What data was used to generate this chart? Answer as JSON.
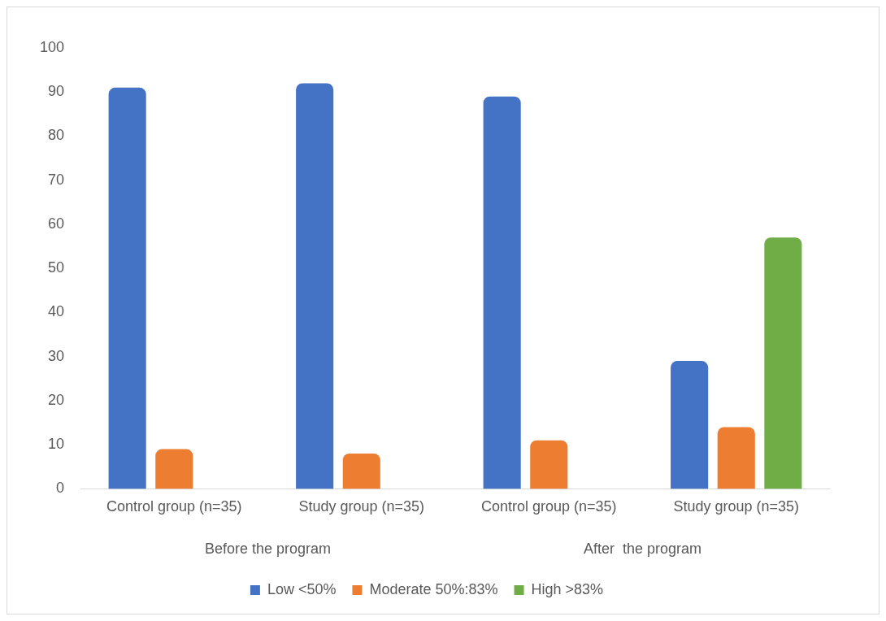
{
  "chart_data": {
    "type": "bar",
    "categories": [
      "Control group (n=35)",
      "Study group (n=35)",
      "Control group (n=35)",
      "Study group (n=35)"
    ],
    "series": [
      {
        "name": "Low <50%",
        "color": "#4472c4",
        "values": [
          91,
          92,
          89,
          29
        ]
      },
      {
        "name": "Moderate 50%:83%",
        "color": "#ed7d31",
        "values": [
          9,
          8,
          11,
          14
        ]
      },
      {
        "name": "High >83%",
        "color": "#70ad47",
        "values": [
          0,
          0,
          0,
          57
        ]
      }
    ],
    "ylim": [
      0,
      100
    ],
    "yticks": [
      0,
      10,
      20,
      30,
      40,
      50,
      60,
      70,
      80,
      90,
      100
    ],
    "grid": false,
    "legend": "bottom",
    "annotations": [
      "Before the program",
      "After  the program"
    ]
  }
}
